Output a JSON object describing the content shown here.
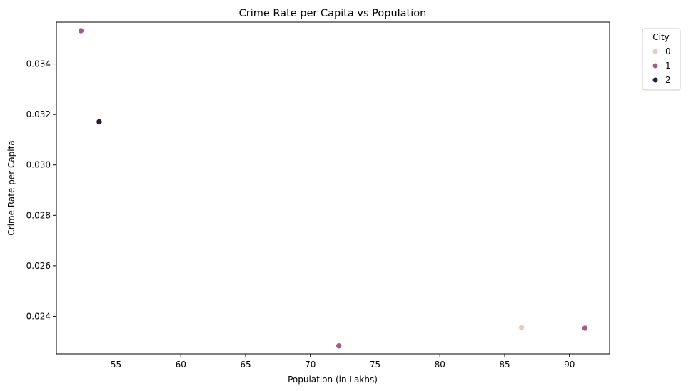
{
  "chart_data": {
    "type": "scatter",
    "title": "Crime Rate per Capita vs Population",
    "xlabel": "Population (in Lakhs)",
    "ylabel": "Crime Rate per Capita",
    "xlim": [
      50.4,
      93.1
    ],
    "ylim": [
      0.02251,
      0.03566
    ],
    "xticks": [
      55,
      60,
      65,
      70,
      75,
      80,
      85,
      90
    ],
    "xtick_labels": [
      "55",
      "60",
      "65",
      "70",
      "75",
      "80",
      "85",
      "90"
    ],
    "yticks": [
      0.024,
      0.026,
      0.028,
      0.03,
      0.032,
      0.034
    ],
    "ytick_labels": [
      "0.024",
      "0.026",
      "0.028",
      "0.030",
      "0.032",
      "0.034"
    ],
    "grid": false,
    "legend": {
      "title": "City",
      "placement": "outside-top-right",
      "entries": [
        {
          "label": "0",
          "color": "#ecc7c0"
        },
        {
          "label": "1",
          "color": "#a35d8c"
        },
        {
          "label": "2",
          "color": "#2a1a3c"
        }
      ]
    },
    "points": [
      {
        "x": 52.3,
        "y": 0.03532,
        "city": "1"
      },
      {
        "x": 53.7,
        "y": 0.03171,
        "city": "2"
      },
      {
        "x": 72.2,
        "y": 0.02283,
        "city": "1"
      },
      {
        "x": 86.3,
        "y": 0.02356,
        "city": "0"
      },
      {
        "x": 91.2,
        "y": 0.02353,
        "city": "1"
      }
    ]
  }
}
